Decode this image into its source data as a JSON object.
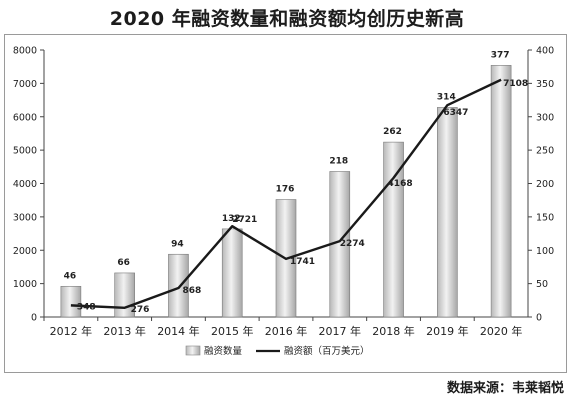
{
  "title": "2020 年融资数量和融资额均创历史新高",
  "source": "数据来源：韦莱韬悦",
  "chart_data": {
    "type": "bar",
    "categories": [
      "2012 年",
      "2013 年",
      "2014 年",
      "2015 年",
      "2016 年",
      "2017 年",
      "2018 年",
      "2019 年",
      "2020 年"
    ],
    "series": [
      {
        "name": "融资数量",
        "type": "bar",
        "axis": "right",
        "values": [
          46,
          66,
          94,
          132,
          176,
          218,
          262,
          314,
          377
        ]
      },
      {
        "name": "融资额（百万美元）",
        "type": "line",
        "axis": "left",
        "values": [
          348,
          276,
          868,
          2721,
          1741,
          2274,
          4168,
          6347,
          7108
        ]
      }
    ],
    "left_axis": {
      "ylim": [
        0,
        8000
      ],
      "ticks": [
        "0",
        "1000",
        "2000",
        "3000",
        "4000",
        "5000",
        "6000",
        "7000",
        "8000"
      ]
    },
    "right_axis": {
      "ylim": [
        0,
        400
      ],
      "ticks": [
        "0",
        "50",
        "100",
        "150",
        "200",
        "250",
        "300",
        "350",
        "400"
      ]
    },
    "bar_color": "#c9c9c9",
    "line_color": "#1a1a1a",
    "grid": false,
    "legend_position": "bottom"
  }
}
